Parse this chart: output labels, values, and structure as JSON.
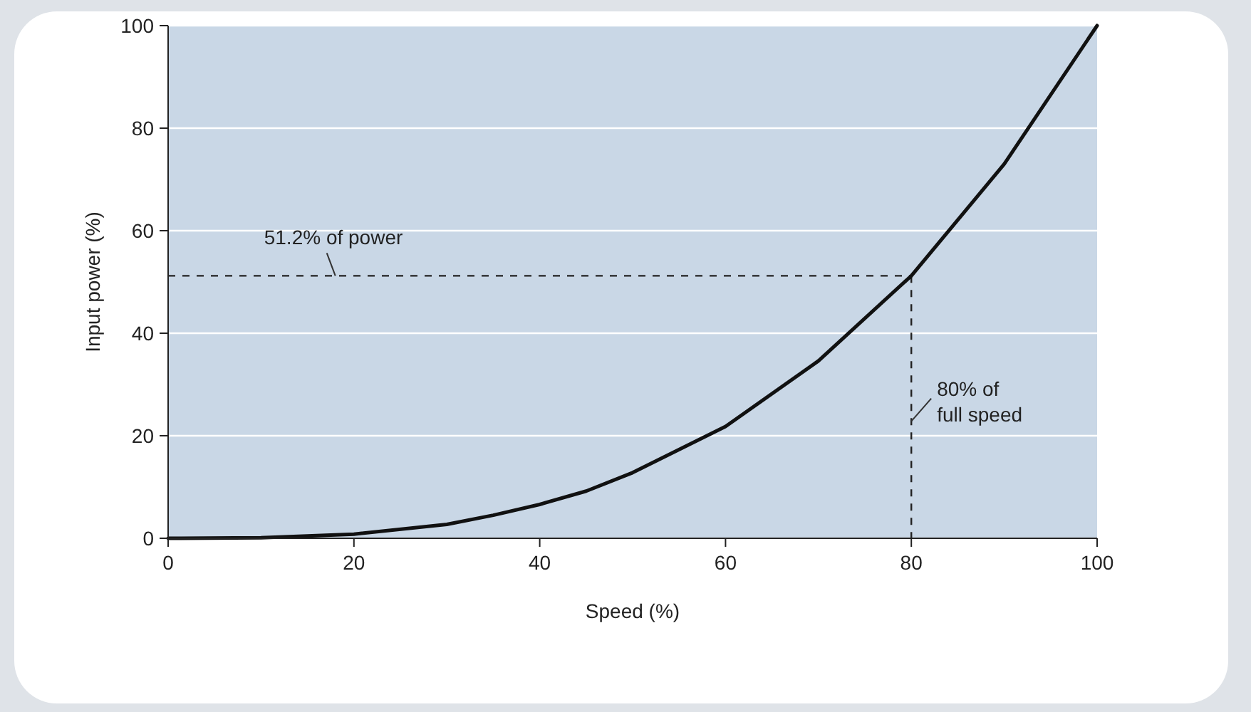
{
  "chart_data": {
    "type": "line",
    "xlabel": "Speed (%)",
    "ylabel": "Input power (%)",
    "x": [
      0,
      10,
      20,
      30,
      35,
      40,
      45,
      50,
      60,
      70,
      80,
      90,
      100
    ],
    "series": [
      {
        "color": "#111111",
        "values": [
          0,
          0.1,
          0.8,
          2.7,
          4.5,
          6.6,
          9.2,
          12.8,
          21.8,
          34.6,
          51.2,
          73,
          100
        ]
      }
    ],
    "xlim": [
      0,
      100
    ],
    "ylim": [
      0,
      100
    ],
    "xticks": [
      0,
      20,
      40,
      60,
      80,
      100
    ],
    "yticks": [
      0,
      20,
      40,
      60,
      80,
      100
    ],
    "grid": "y",
    "line_style": "solid",
    "marker": "none",
    "ref_lines": [
      {
        "axis": "y",
        "value": 51.2,
        "label": "51.2% of power",
        "line_style": "dashed",
        "color": "#222222"
      },
      {
        "axis": "x",
        "value": 80,
        "label": "80% of\nfull speed",
        "line_style": "dashed",
        "color": "#222222"
      }
    ]
  }
}
